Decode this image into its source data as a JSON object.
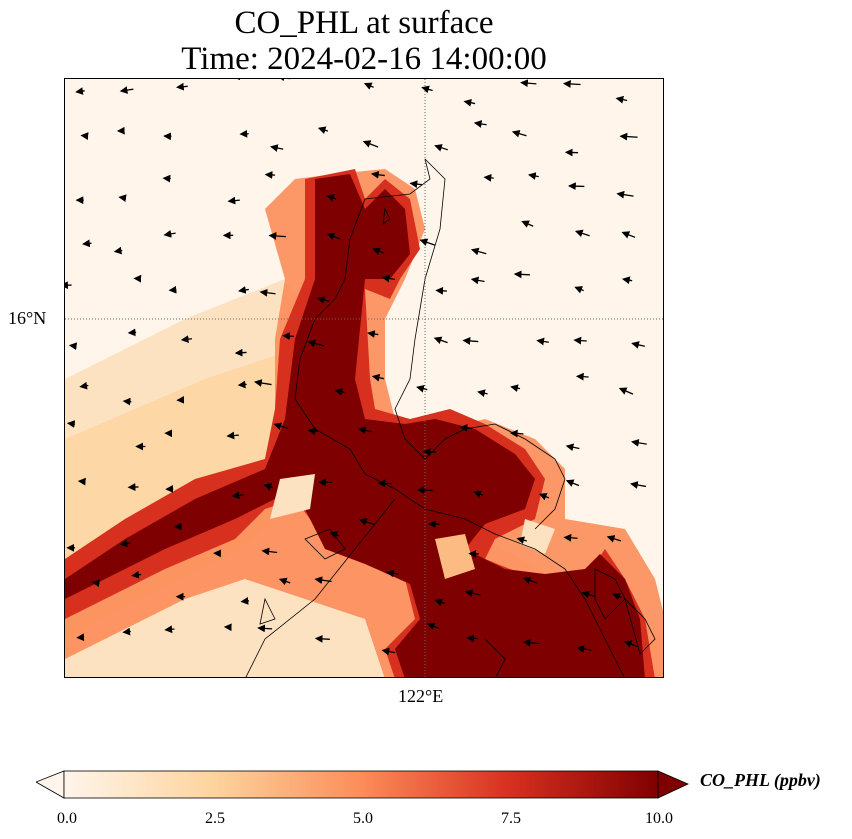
{
  "title": {
    "line1": "CO_PHL at surface",
    "line2": "Time: 2024-02-16 14:00:00"
  },
  "map": {
    "lat_tick": "16°N",
    "lon_tick": "122°E",
    "grid": "dotted"
  },
  "colorbar": {
    "label": "CO_PHL (ppbv)",
    "ticks": [
      "0.0",
      "2.5",
      "5.0",
      "7.5",
      "10.0"
    ],
    "range": [
      0.0,
      10.0
    ],
    "colormap": "OrRd",
    "colors": [
      "#fff5eb",
      "#fdd49e",
      "#fc8d59",
      "#d7301f",
      "#7f0000"
    ],
    "extend": "both"
  }
}
